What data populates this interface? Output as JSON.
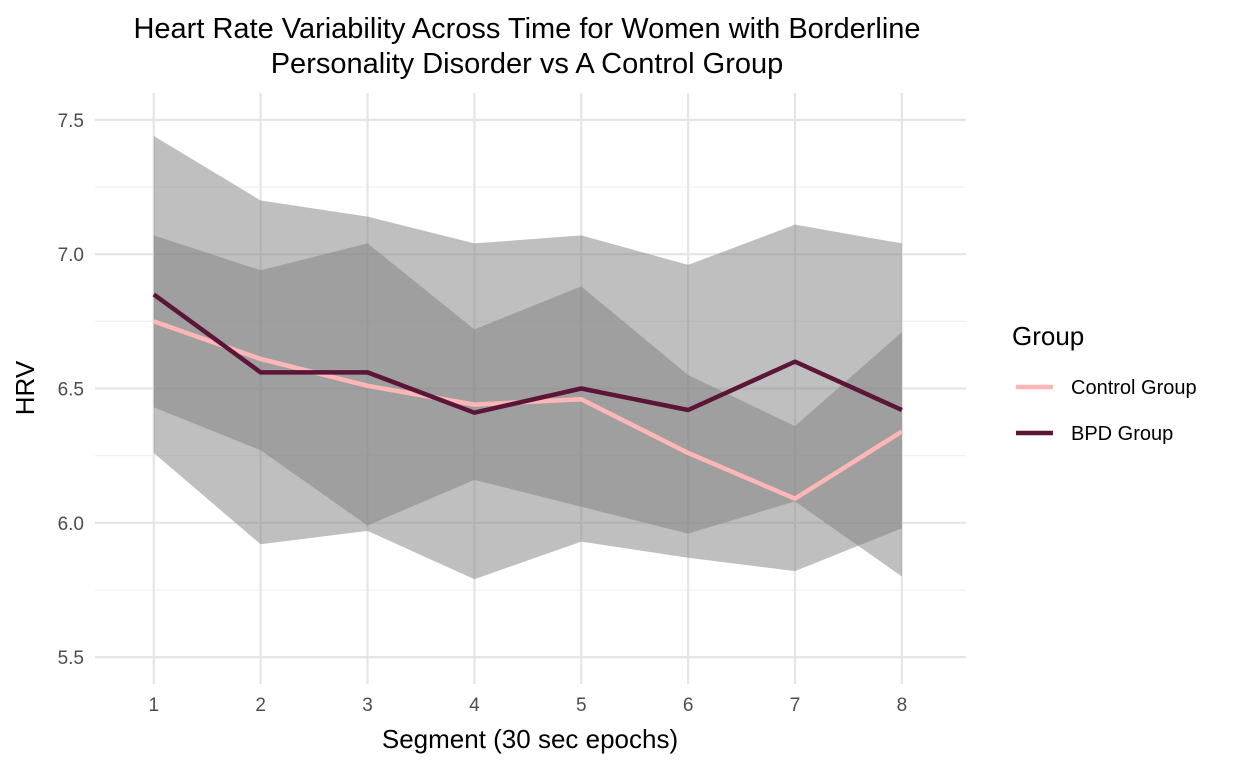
{
  "chart_data": {
    "type": "line",
    "title": "Heart Rate Variability Across Time for Women with Borderline Personality Disorder vs A Control Group",
    "title_lines": [
      "Heart Rate Variability Across Time for Women with Borderline",
      "Personality Disorder vs A Control Group"
    ],
    "xlabel": "Segment (30 sec epochs)",
    "ylabel": "HRV",
    "x": [
      1,
      2,
      3,
      4,
      5,
      6,
      7,
      8
    ],
    "xticks": [
      "1",
      "2",
      "3",
      "4",
      "5",
      "6",
      "7",
      "8"
    ],
    "yticks": [
      "5.5",
      "6.0",
      "6.5",
      "7.0",
      "7.5"
    ],
    "ytick_values": [
      5.5,
      6.0,
      6.5,
      7.0,
      7.5
    ],
    "xlim": [
      0.45,
      8.6
    ],
    "ylim": [
      5.4,
      7.6
    ],
    "grid": true,
    "legend": {
      "title": "Group",
      "position": "right"
    },
    "series": [
      {
        "name": "Control Group",
        "color": "#FFB6B6",
        "values": [
          6.75,
          6.61,
          6.51,
          6.44,
          6.46,
          6.26,
          6.09,
          6.34
        ],
        "ribbon_lower": [
          6.26,
          5.92,
          5.97,
          5.79,
          5.93,
          5.87,
          5.82,
          5.98
        ],
        "ribbon_upper": [
          7.44,
          7.2,
          7.14,
          7.04,
          7.07,
          6.96,
          7.11,
          7.04
        ]
      },
      {
        "name": "BPD Group",
        "color": "#5A1538",
        "values": [
          6.85,
          6.56,
          6.56,
          6.41,
          6.5,
          6.42,
          6.6,
          6.42
        ],
        "ribbon_lower": [
          6.43,
          6.27,
          5.99,
          6.16,
          6.06,
          5.96,
          6.08,
          5.8
        ],
        "ribbon_upper": [
          7.07,
          6.94,
          7.04,
          6.72,
          6.88,
          6.55,
          6.36,
          6.71
        ]
      }
    ],
    "ribbon_color": "#7f7f7f"
  }
}
